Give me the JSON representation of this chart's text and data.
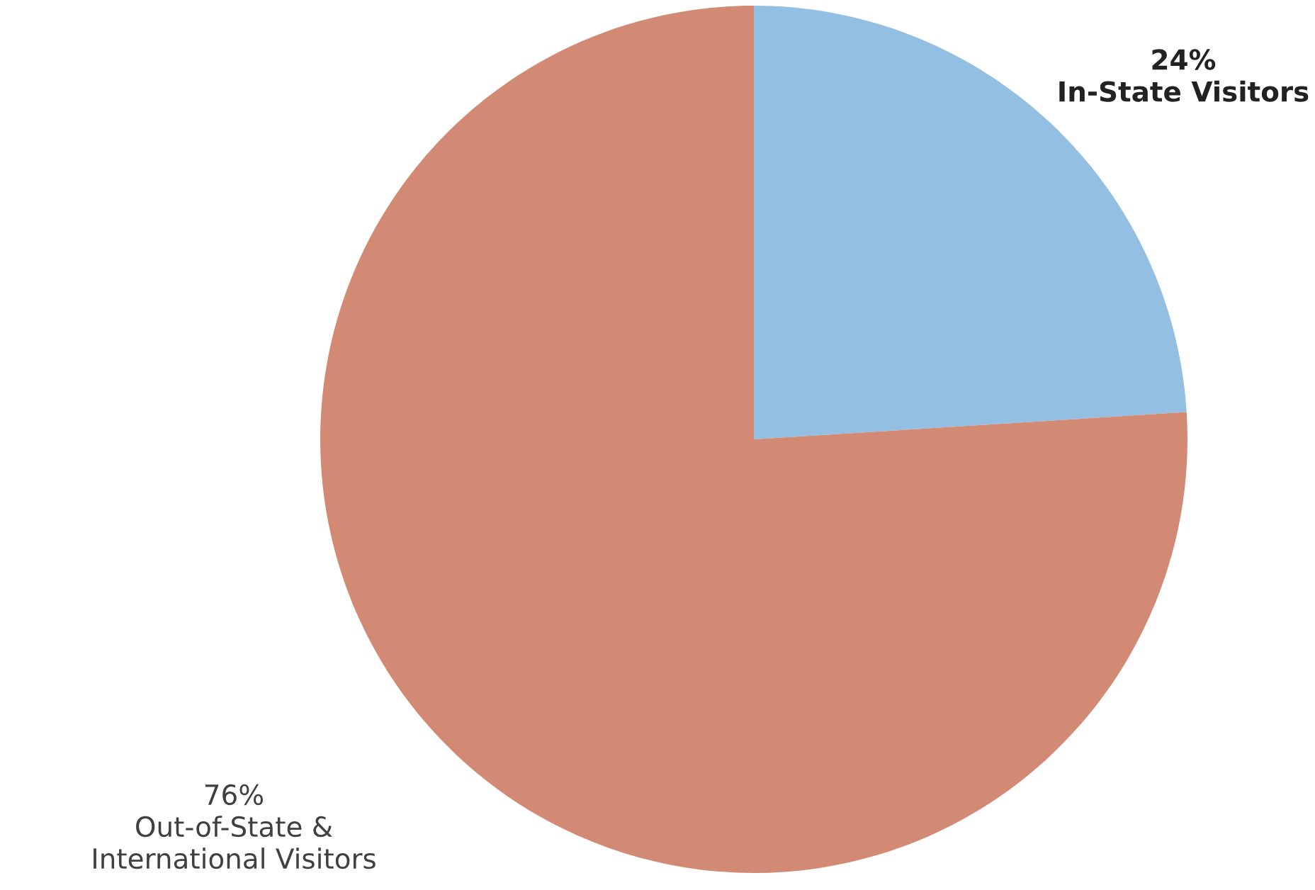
{
  "chart_data": {
    "type": "pie",
    "categories": [
      "In-State Visitors",
      "Out-of-State &\nInternational Visitors"
    ],
    "values": [
      24,
      76
    ],
    "colors": [
      "#93bfe2",
      "#d38a74"
    ],
    "value_labels": [
      "24%",
      "76%"
    ]
  }
}
